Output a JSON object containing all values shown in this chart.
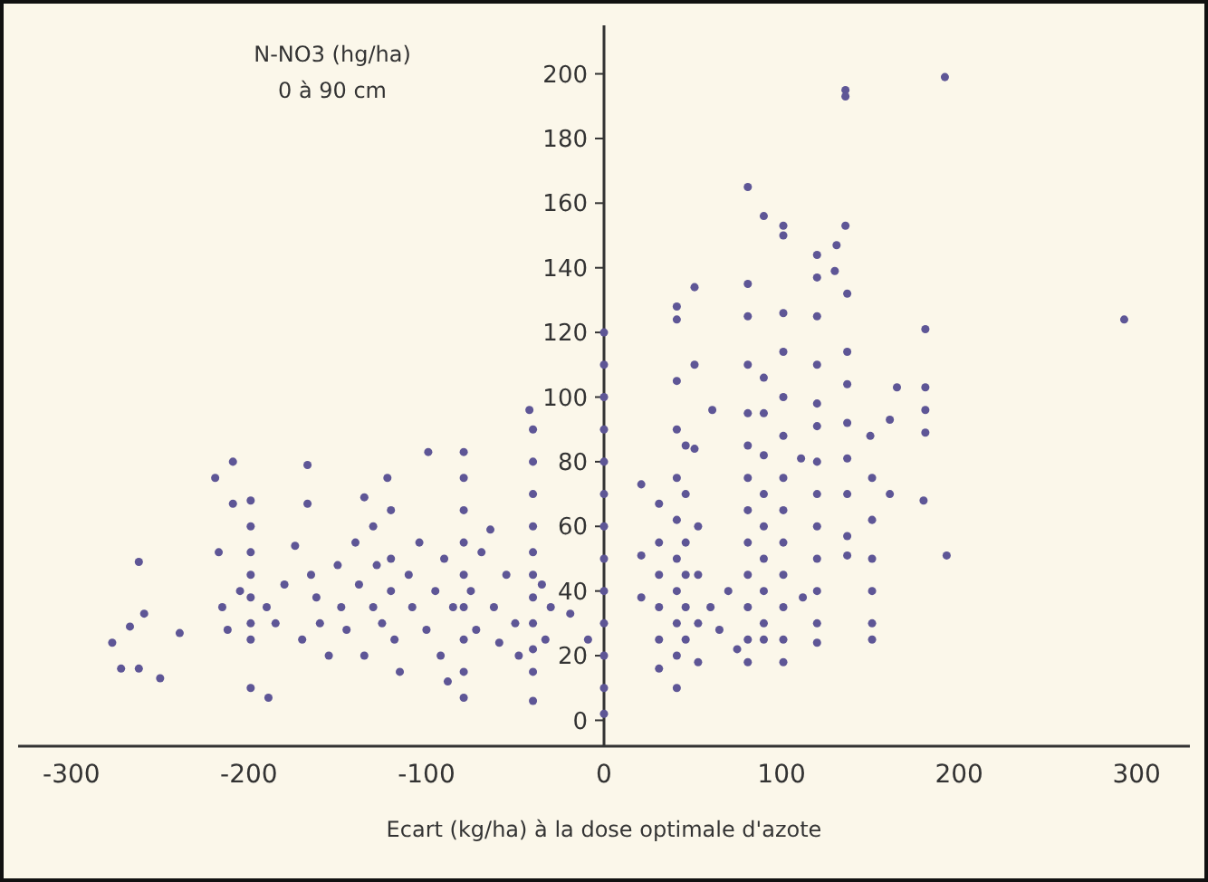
{
  "chart_data": {
    "type": "scatter",
    "ylabel": "N-NO3 (hg/ha)",
    "subtitle": "0 à 90 cm",
    "xlabel": "Ecart (kg/ha) à la dose optimale d'azote",
    "xlim": [
      -330,
      330
    ],
    "ylim": [
      -8,
      215
    ],
    "xticks": [
      -300,
      -200,
      -100,
      0,
      100,
      200,
      300
    ],
    "yticks": [
      0,
      20,
      40,
      60,
      80,
      100,
      120,
      140,
      160,
      180,
      200
    ],
    "grid": false,
    "marker": "circle",
    "series": [
      {
        "color": "#5e5696",
        "x": [
          -277,
          -272,
          -267,
          -262,
          -262,
          -259,
          -250,
          -239,
          -219,
          -217,
          -209,
          -209,
          -215,
          -212,
          -205,
          -199,
          -199,
          -199,
          -199,
          -199,
          -199,
          -199,
          -199,
          -189,
          -190,
          -185,
          -180,
          -174,
          -170,
          -167,
          -167,
          -165,
          -162,
          -160,
          -155,
          -150,
          -148,
          -145,
          -140,
          -138,
          -135,
          -135,
          -130,
          -130,
          -128,
          -125,
          -122,
          -120,
          -120,
          -120,
          -118,
          -115,
          -110,
          -108,
          -104,
          -100,
          -99,
          -95,
          -92,
          -90,
          -88,
          -85,
          -79,
          -79,
          -79,
          -79,
          -79,
          -79,
          -79,
          -79,
          -79,
          -75,
          -72,
          -69,
          -64,
          -62,
          -59,
          -55,
          -50,
          -48,
          -42,
          -40,
          -40,
          -40,
          -40,
          -40,
          -40,
          -40,
          -40,
          -40,
          -40,
          -40,
          -35,
          -33,
          -30,
          -19,
          -9,
          0,
          0,
          0,
          0,
          0,
          0,
          0,
          0,
          0,
          0,
          0,
          0,
          0,
          21,
          21,
          21,
          31,
          31,
          31,
          31,
          31,
          31,
          41,
          41,
          41,
          41,
          41,
          41,
          41,
          41,
          41,
          41,
          41,
          46,
          46,
          46,
          46,
          46,
          46,
          51,
          51,
          51,
          53,
          53,
          53,
          53,
          61,
          60,
          65,
          70,
          75,
          81,
          81,
          81,
          81,
          81,
          81,
          81,
          81,
          81,
          81,
          81,
          81,
          81,
          90,
          90,
          90,
          90,
          90,
          90,
          90,
          90,
          90,
          90,
          101,
          101,
          101,
          101,
          101,
          101,
          101,
          101,
          101,
          101,
          101,
          101,
          101,
          111,
          112,
          120,
          120,
          120,
          120,
          120,
          120,
          120,
          120,
          120,
          120,
          120,
          120,
          120,
          131,
          130,
          136,
          136,
          136,
          137,
          137,
          137,
          137,
          137,
          137,
          137,
          137,
          150,
          151,
          151,
          151,
          151,
          151,
          151,
          161,
          161,
          165,
          181,
          181,
          181,
          181,
          180,
          192,
          193,
          293
        ],
        "values": [
          24,
          16,
          29,
          16,
          49,
          33,
          13,
          27,
          75,
          52,
          80,
          67,
          35,
          28,
          40,
          68,
          60,
          52,
          45,
          38,
          30,
          25,
          10,
          7,
          35,
          30,
          42,
          54,
          25,
          79,
          67,
          45,
          38,
          30,
          20,
          48,
          35,
          28,
          55,
          42,
          69,
          20,
          60,
          35,
          48,
          30,
          75,
          65,
          50,
          40,
          25,
          15,
          45,
          35,
          55,
          28,
          83,
          40,
          20,
          50,
          12,
          35,
          83,
          75,
          65,
          55,
          45,
          35,
          25,
          15,
          7,
          40,
          28,
          52,
          59,
          35,
          24,
          45,
          30,
          20,
          96,
          90,
          80,
          70,
          60,
          52,
          45,
          38,
          30,
          22,
          15,
          6,
          42,
          25,
          35,
          33,
          25,
          120,
          110,
          100,
          90,
          80,
          70,
          60,
          50,
          40,
          30,
          20,
          10,
          2,
          73,
          51,
          38,
          67,
          55,
          45,
          35,
          25,
          16,
          128,
          124,
          105,
          90,
          75,
          62,
          50,
          40,
          30,
          20,
          10,
          85,
          70,
          55,
          45,
          35,
          25,
          134,
          110,
          84,
          60,
          45,
          30,
          18,
          96,
          35,
          28,
          40,
          22,
          165,
          135,
          125,
          110,
          95,
          85,
          75,
          65,
          55,
          45,
          35,
          25,
          18,
          156,
          106,
          95,
          82,
          70,
          60,
          50,
          40,
          30,
          25,
          153,
          150,
          126,
          114,
          100,
          88,
          75,
          65,
          55,
          45,
          35,
          25,
          18,
          81,
          38,
          144,
          137,
          125,
          110,
          98,
          91,
          80,
          70,
          60,
          50,
          40,
          30,
          24,
          147,
          139,
          195,
          193,
          153,
          132,
          114,
          104,
          92,
          81,
          70,
          57,
          51,
          88,
          75,
          62,
          50,
          40,
          30,
          25,
          93,
          70,
          103,
          121,
          103,
          96,
          89,
          68,
          199,
          51,
          124
        ]
      }
    ]
  }
}
